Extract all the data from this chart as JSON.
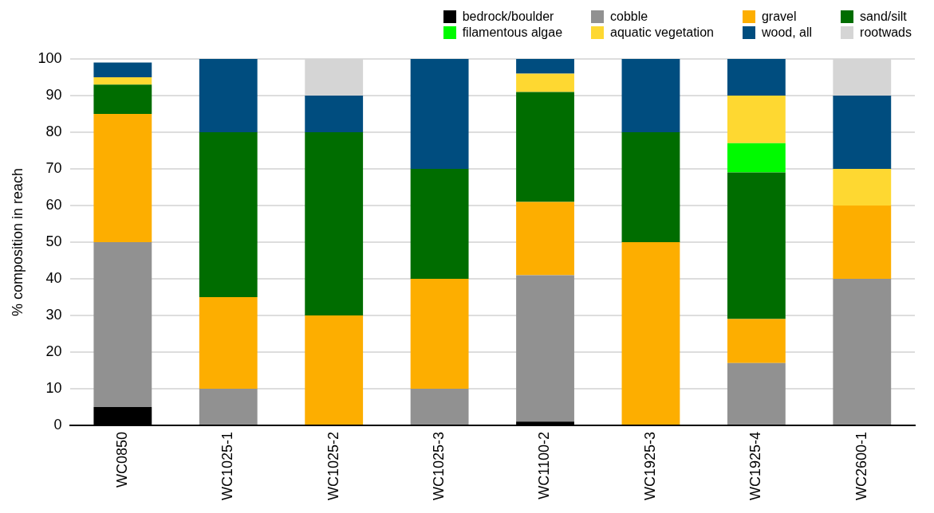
{
  "chart_data": {
    "type": "bar",
    "stacked": true,
    "ylabel": "% composition in reach",
    "categories": [
      "WC0850",
      "WC1025-1",
      "WC1025-2",
      "WC1025-3",
      "WC1100-2",
      "WC1925-3",
      "WC1925-4",
      "WC2600-1"
    ],
    "series": [
      {
        "name": "bedrock/boulder",
        "color": "#000000",
        "values": [
          5,
          0,
          0,
          0,
          1,
          0,
          0,
          0
        ]
      },
      {
        "name": "cobble",
        "color": "#919191",
        "values": [
          45,
          10,
          0,
          10,
          40,
          0,
          17,
          40
        ]
      },
      {
        "name": "gravel",
        "color": "#fdae00",
        "values": [
          35,
          25,
          30,
          30,
          20,
          50,
          12,
          20
        ]
      },
      {
        "name": "sand/silt",
        "color": "#006d00",
        "values": [
          8,
          45,
          50,
          30,
          30,
          30,
          40,
          0
        ]
      },
      {
        "name": "filamentous algae",
        "color": "#00fa00",
        "values": [
          0,
          0,
          0,
          0,
          0,
          0,
          8,
          0
        ]
      },
      {
        "name": "aquatic vegetation",
        "color": "#fed831",
        "values": [
          2,
          0,
          0,
          0,
          5,
          0,
          13,
          10
        ]
      },
      {
        "name": "wood, all",
        "color": "#004d7f",
        "values": [
          4,
          20,
          10,
          30,
          4,
          20,
          10,
          20
        ]
      },
      {
        "name": "rootwads",
        "color": "#d5d5d5",
        "values": [
          0,
          0,
          10,
          0,
          0,
          0,
          0,
          10
        ]
      }
    ],
    "ylim": [
      0,
      100
    ],
    "yticks": [
      0,
      10,
      20,
      30,
      40,
      50,
      60,
      70,
      80,
      90,
      100
    ],
    "grid": "y",
    "legend": "top right"
  }
}
